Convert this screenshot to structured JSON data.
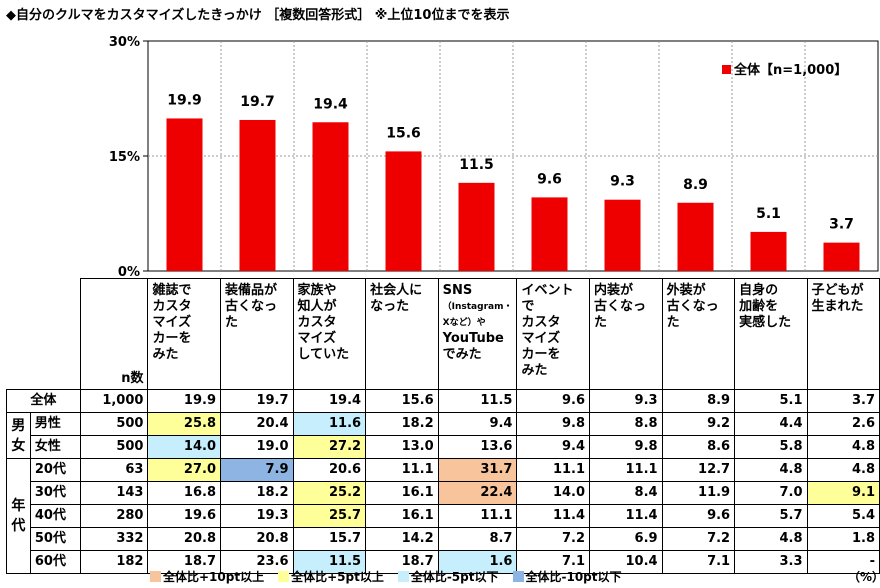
{
  "title": "◆自分のクルマをカスタマイズしたきっかけ ［複数回答形式］ ※上位10位までを表示",
  "unit": "（%）",
  "colors": {
    "bar": "#ee0000",
    "plus10": "#f8c49c",
    "plus5": "#ffff99",
    "minus5": "#c6eefc",
    "minus10": "#8db4e2"
  },
  "chart_data": {
    "type": "bar",
    "categories": [
      "雑誌でカスタマイズカーをみた",
      "装備品が古くなった",
      "家族や知人がカスタマイズしていた",
      "社会人になった",
      "SNS（Instagram・Xなど）やYouTubeでみた",
      "イベントでカスタマイズカーをみた",
      "内装が古くなった",
      "外装が古くなった",
      "自身の加齢を実感した",
      "子どもが生まれた"
    ],
    "series": [
      {
        "name": "全体【n=1,000】",
        "values": [
          19.9,
          19.7,
          19.4,
          15.6,
          11.5,
          9.6,
          9.3,
          8.9,
          5.1,
          3.7
        ]
      }
    ],
    "value_labels": [
      "19.9",
      "19.7",
      "19.4",
      "15.6",
      "11.5",
      "9.6",
      "9.3",
      "8.9",
      "5.1",
      "3.7"
    ],
    "ylim": [
      0,
      30
    ],
    "yticks": [
      0,
      15,
      30
    ],
    "ytick_labels": [
      "0%",
      "15%",
      "30%"
    ],
    "grid": true,
    "legend_position": "top-right"
  },
  "table": {
    "category_lines": [
      [
        "雑誌で",
        "カスタ",
        "マイズ",
        "カーを",
        "みた"
      ],
      [
        "装備品が",
        "古くなった"
      ],
      [
        "家族や",
        "知人が",
        "カスタ",
        "マイズ",
        "していた"
      ],
      [
        "社会人に",
        "なった"
      ],
      [
        "SNS",
        "（Instagram・",
        "Xなど）や",
        "YouTube",
        "でみた"
      ],
      [
        "イベントで",
        "カスタ",
        "マイズ",
        "カーを",
        "みた"
      ],
      [
        "内装が",
        "古くなった"
      ],
      [
        "外装が",
        "古くなった"
      ],
      [
        "自身の",
        "加齢を",
        "実感した"
      ],
      [
        "子どもが",
        "生まれた"
      ]
    ],
    "n_header": "n数",
    "groups": [
      {
        "label": "",
        "rows": [
          {
            "label": "全体",
            "n": "1,000",
            "values": [
              "19.9",
              "19.7",
              "19.4",
              "15.6",
              "11.5",
              "9.6",
              "9.3",
              "8.9",
              "5.1",
              "3.7"
            ],
            "hl": [
              "",
              "",
              "",
              "",
              "",
              "",
              "",
              "",
              "",
              ""
            ]
          }
        ]
      },
      {
        "label": "男女",
        "rows": [
          {
            "label": "男性",
            "n": "500",
            "values": [
              "25.8",
              "20.4",
              "11.6",
              "18.2",
              "9.4",
              "9.8",
              "8.8",
              "9.2",
              "4.4",
              "2.6"
            ],
            "hl": [
              "p5",
              "",
              "m5",
              "",
              "",
              "",
              "",
              "",
              "",
              ""
            ]
          },
          {
            "label": "女性",
            "n": "500",
            "values": [
              "14.0",
              "19.0",
              "27.2",
              "13.0",
              "13.6",
              "9.4",
              "9.8",
              "8.6",
              "5.8",
              "4.8"
            ],
            "hl": [
              "m5",
              "",
              "p5",
              "",
              "",
              "",
              "",
              "",
              "",
              ""
            ]
          }
        ]
      },
      {
        "label": "年代",
        "rows": [
          {
            "label": "20代",
            "n": "63",
            "values": [
              "27.0",
              "7.9",
              "20.6",
              "11.1",
              "31.7",
              "11.1",
              "11.1",
              "12.7",
              "4.8",
              "4.8"
            ],
            "hl": [
              "p5",
              "m10",
              "",
              "",
              "p10",
              "",
              "",
              "",
              "",
              ""
            ]
          },
          {
            "label": "30代",
            "n": "143",
            "values": [
              "16.8",
              "18.2",
              "25.2",
              "16.1",
              "22.4",
              "14.0",
              "8.4",
              "11.9",
              "7.0",
              "9.1"
            ],
            "hl": [
              "",
              "",
              "p5",
              "",
              "p10",
              "",
              "",
              "",
              "",
              "p5"
            ]
          },
          {
            "label": "40代",
            "n": "280",
            "values": [
              "19.6",
              "19.3",
              "25.7",
              "16.1",
              "11.1",
              "11.4",
              "11.4",
              "9.6",
              "5.7",
              "5.4"
            ],
            "hl": [
              "",
              "",
              "p5",
              "",
              "",
              "",
              "",
              "",
              "",
              ""
            ]
          },
          {
            "label": "50代",
            "n": "332",
            "values": [
              "20.8",
              "20.8",
              "15.7",
              "14.2",
              "8.7",
              "7.2",
              "6.9",
              "7.2",
              "4.8",
              "1.8"
            ],
            "hl": [
              "",
              "",
              "",
              "",
              "",
              "",
              "",
              "",
              "",
              ""
            ]
          },
          {
            "label": "60代",
            "n": "182",
            "values": [
              "18.7",
              "23.6",
              "11.5",
              "18.7",
              "1.6",
              "7.1",
              "10.4",
              "7.1",
              "3.3",
              "-"
            ],
            "hl": [
              "",
              "",
              "m5",
              "",
              "m5",
              "",
              "",
              "",
              "",
              ""
            ]
          }
        ]
      }
    ]
  },
  "legend": [
    {
      "key": "p10",
      "label": "全体比+10pt以上"
    },
    {
      "key": "p5",
      "label": "全体比+5pt以上"
    },
    {
      "key": "m5",
      "label": "全体比-5pt以下"
    },
    {
      "key": "m10",
      "label": "全体比-10pt以下"
    }
  ]
}
